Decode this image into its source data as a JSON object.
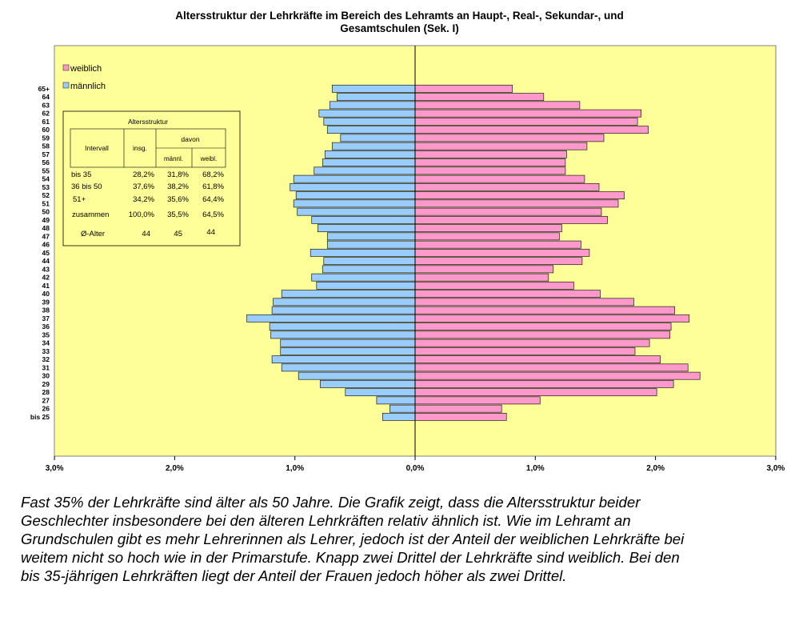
{
  "chart_data": {
    "type": "bar",
    "title": [
      "Altersstruktur der Lehrkräfte im Bereich des Lehramts an Haupt-, Real-, Sekundar-, und",
      "Gesamtschulen (Sek. I)"
    ],
    "categories": [
      "bis 25",
      "26",
      "27",
      "28",
      "29",
      "30",
      "31",
      "32",
      "33",
      "34",
      "35",
      "36",
      "37",
      "38",
      "39",
      "40",
      "41",
      "42",
      "43",
      "44",
      "45",
      "46",
      "47",
      "48",
      "49",
      "50",
      "51",
      "52",
      "53",
      "54",
      "55",
      "56",
      "57",
      "58",
      "59",
      "60",
      "61",
      "62",
      "63",
      "64",
      "65+"
    ],
    "series": [
      {
        "name": "männlich",
        "color": "#99ccff",
        "values": [
          0.27,
          0.21,
          0.32,
          0.58,
          0.79,
          0.97,
          1.11,
          1.19,
          1.12,
          1.12,
          1.2,
          1.21,
          1.4,
          1.19,
          1.18,
          1.11,
          0.82,
          0.86,
          0.77,
          0.76,
          0.87,
          0.73,
          0.73,
          0.81,
          0.86,
          0.98,
          1.01,
          0.99,
          1.04,
          1.01,
          0.84,
          0.77,
          0.75,
          0.69,
          0.62,
          0.73,
          0.76,
          0.8,
          0.71,
          0.65,
          0.69
        ]
      },
      {
        "name": "weiblich",
        "color": "#ff99cc",
        "values": [
          0.76,
          0.72,
          1.04,
          2.01,
          2.15,
          2.37,
          2.27,
          2.04,
          1.83,
          1.95,
          2.12,
          2.13,
          2.28,
          2.16,
          1.82,
          1.54,
          1.32,
          1.11,
          1.15,
          1.39,
          1.45,
          1.38,
          1.2,
          1.22,
          1.6,
          1.55,
          1.69,
          1.74,
          1.53,
          1.41,
          1.25,
          1.25,
          1.26,
          1.43,
          1.57,
          1.94,
          1.85,
          1.88,
          1.37,
          1.07,
          0.81
        ]
      }
    ],
    "xlim": [
      -3,
      3
    ],
    "x_ticks": [
      "3,0%",
      "2,0%",
      "1,0%",
      "0,0%",
      "1,0%",
      "2,0%",
      "3,0%"
    ],
    "legend_placement": "top-left",
    "grid": false,
    "plot_background": "#ffff99",
    "inset_table": {
      "title": "Altersstruktur",
      "header_interval": "Intervall",
      "header_total": "insg.",
      "header_group": "davon",
      "header_male": "männl.",
      "header_female": "weibl.",
      "rows": [
        {
          "label": "bis 35",
          "total": "28,2%",
          "male": "31,8%",
          "female": "68,2%"
        },
        {
          "label": "36 bis 50",
          "total": "37,6%",
          "male": "38,2%",
          "female": "61,8%"
        },
        {
          "label": "51+",
          "total": "34,2%",
          "male": "35,6%",
          "female": "64,4%"
        },
        {
          "label": "zusammen",
          "total": "100,0%",
          "male": "35,5%",
          "female": "64,5%"
        }
      ],
      "avg_label": "Ø-Alter",
      "avg_total": "44",
      "avg_male": "45",
      "avg_female": "44"
    }
  },
  "caption": [
    "Fast 35% der Lehrkräfte sind älter als 50 Jahre. Die Grafik zeigt, dass die Altersstruktur beider",
    "Geschlechter insbesondere bei den älteren Lehrkräften relativ ähnlich ist. Wie im Lehramt an",
    "Grundschulen gibt es mehr Lehrerinnen als Lehrer, jedoch ist der Anteil der weiblichen Lehrkräfte bei",
    "weitem nicht so hoch wie in der Primarstufe. Knapp zwei Drittel der Lehrkräfte sind weiblich. Bei den",
    "bis 35-jährigen Lehrkräften liegt der Anteil der Frauen jedoch höher als zwei Drittel."
  ]
}
